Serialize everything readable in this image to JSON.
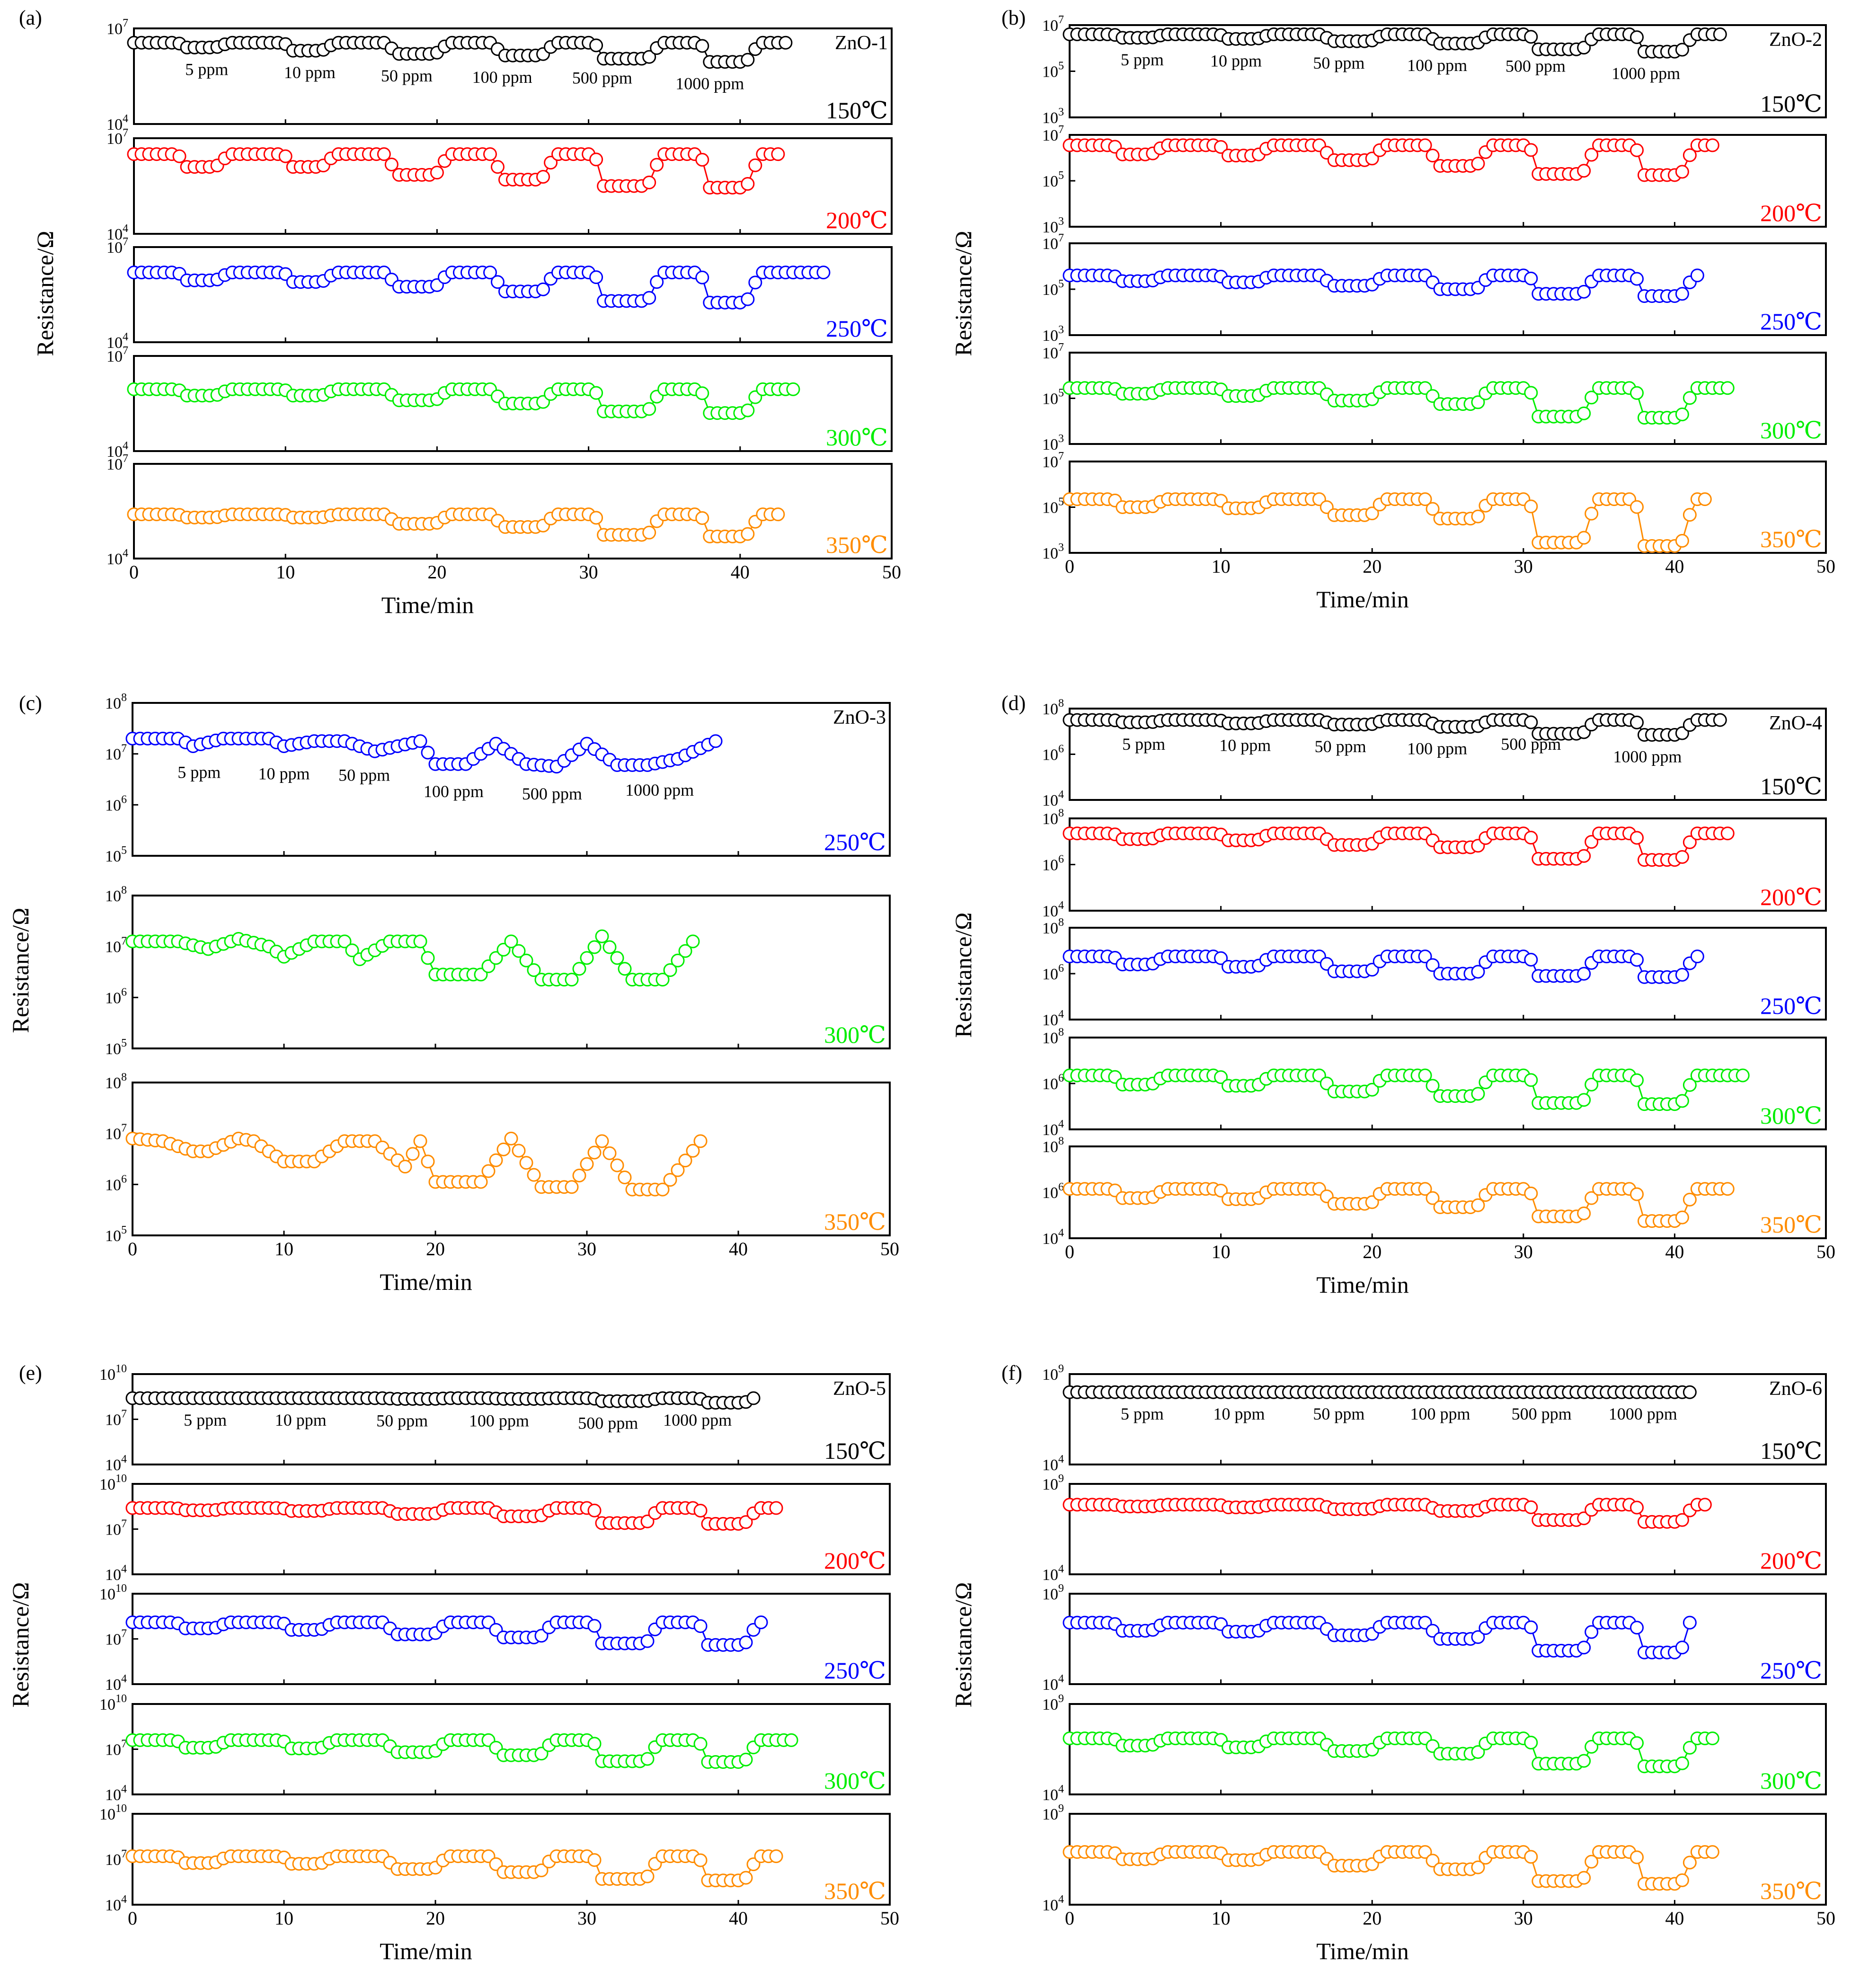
{
  "figure": {
    "axis_label_x": "Time/min",
    "axis_label_y": "Resistance/Ω",
    "x_ticks": [
      "0",
      "10",
      "20",
      "30",
      "40",
      "50"
    ],
    "xlim": [
      0,
      50
    ]
  },
  "temperatures": {
    "150": {
      "label": "150℃",
      "color": "#000000"
    },
    "200": {
      "label": "200℃",
      "color": "#ff0000"
    },
    "250": {
      "label": "250℃",
      "color": "#0000ff"
    },
    "300": {
      "label": "300℃",
      "color": "#00ee00"
    },
    "350": {
      "label": "350℃",
      "color": "#ff8c00"
    }
  },
  "chart_data": [
    {
      "panel": "(a)",
      "sample": "ZnO-1",
      "type": "line",
      "yscale": "log",
      "ylim_exp": [
        4,
        7
      ],
      "y_tick_exp": [
        4,
        7
      ],
      "xlabel": "Time/min",
      "ylabel": "Resistance/Ω",
      "concentration_labels": [
        "5 ppm",
        "10 ppm",
        "50 ppm",
        "100 ppm",
        "500 ppm",
        "1000 ppm"
      ],
      "concentration_label_times": [
        4.8,
        11.6,
        18.0,
        24.3,
        30.9,
        38.0
      ],
      "series": [
        {
          "name": "150℃",
          "temp": "150",
          "x_end": 43,
          "baseline_log": 6.55,
          "gas_log": [
            6.4,
            6.3,
            6.2,
            6.15,
            6.05,
            5.95
          ]
        },
        {
          "name": "200℃",
          "temp": "200",
          "x_end": 42.5,
          "baseline_log": 6.5,
          "gas_log": [
            6.1,
            6.1,
            5.85,
            5.7,
            5.5,
            5.45
          ]
        },
        {
          "name": "250℃",
          "temp": "250",
          "x_end": 45.5,
          "baseline_log": 6.2,
          "gas_log": [
            5.95,
            5.9,
            5.75,
            5.6,
            5.3,
            5.25
          ]
        },
        {
          "name": "300℃",
          "temp": "300",
          "x_end": 43.5,
          "baseline_log": 5.95,
          "gas_log": [
            5.75,
            5.75,
            5.6,
            5.5,
            5.25,
            5.2
          ]
        },
        {
          "name": "350℃",
          "temp": "350",
          "x_end": 42.5,
          "baseline_log": 5.4,
          "gas_log": [
            5.3,
            5.3,
            5.1,
            5.0,
            4.75,
            4.7
          ]
        }
      ]
    },
    {
      "panel": "(b)",
      "sample": "ZnO-2",
      "type": "line",
      "yscale": "log",
      "ylim_exp": [
        3,
        7
      ],
      "y_tick_exp": [
        3,
        5,
        7
      ],
      "xlabel": "Time/min",
      "ylabel": "Resistance/Ω",
      "concentration_labels": [
        "5 ppm",
        "10 ppm",
        "50 ppm",
        "100 ppm",
        "500 ppm",
        "1000 ppm"
      ],
      "concentration_label_times": [
        4.8,
        11.0,
        17.8,
        24.3,
        30.8,
        38.1
      ],
      "series": [
        {
          "name": "150℃",
          "temp": "150",
          "x_end": 43,
          "baseline_log": 6.6,
          "gas_log": [
            6.45,
            6.4,
            6.3,
            6.2,
            5.95,
            5.85
          ]
        },
        {
          "name": "200℃",
          "temp": "200",
          "x_end": 42.5,
          "baseline_log": 6.55,
          "gas_log": [
            6.15,
            6.1,
            5.9,
            5.65,
            5.3,
            5.25
          ]
        },
        {
          "name": "250℃",
          "temp": "250",
          "x_end": 41.5,
          "baseline_log": 5.6,
          "gas_log": [
            5.35,
            5.3,
            5.15,
            5.0,
            4.8,
            4.7
          ]
        },
        {
          "name": "300℃",
          "temp": "300",
          "x_end": 43.5,
          "baseline_log": 5.45,
          "gas_log": [
            5.2,
            5.1,
            4.9,
            4.75,
            4.2,
            4.15
          ]
        },
        {
          "name": "350℃",
          "temp": "350",
          "x_end": 42,
          "baseline_log": 5.35,
          "gas_log": [
            5.0,
            4.95,
            4.65,
            4.5,
            3.45,
            3.3
          ]
        }
      ]
    },
    {
      "panel": "(c)",
      "sample": "ZnO-3",
      "type": "line",
      "yscale": "log",
      "ylim_exp": [
        5,
        8
      ],
      "y_tick_exp": [
        5,
        6,
        7,
        8
      ],
      "xlabel": "Time/min",
      "ylabel": "Resistance/Ω",
      "concentration_labels": [
        "5 ppm",
        "10 ppm",
        "50 ppm",
        "100 ppm",
        "500 ppm",
        "1000 ppm"
      ],
      "concentration_label_times": [
        4.4,
        10.0,
        15.3,
        21.2,
        27.7,
        34.8
      ],
      "series": [
        {
          "name": "250℃",
          "temp": "250",
          "x_end": 38.5,
          "gas_log": [
            7.1,
            7.05,
            7.0,
            6.8,
            6.72,
            6.72
          ],
          "x_pts": [
            0,
            3,
            4,
            6,
            9,
            10,
            12,
            14,
            16,
            19,
            20,
            22,
            24,
            26,
            28,
            30,
            32,
            34,
            36,
            38.5
          ],
          "y_log": [
            7.3,
            7.3,
            7.15,
            7.3,
            7.3,
            7.15,
            7.25,
            7.25,
            7.05,
            7.25,
            6.8,
            6.8,
            7.2,
            6.8,
            6.75,
            7.2,
            6.78,
            6.78,
            6.9,
            7.25
          ]
        },
        {
          "name": "300℃",
          "temp": "300",
          "x_end": 37,
          "gas_log": [
            7.0,
            6.8,
            6.75,
            6.45,
            6.35,
            6.35
          ],
          "x_pts": [
            0,
            3,
            5,
            7,
            9,
            10,
            12,
            14,
            15,
            17,
            19,
            20,
            23,
            25,
            27,
            29,
            31,
            33,
            35,
            37
          ],
          "y_log": [
            7.1,
            7.1,
            6.95,
            7.15,
            7.0,
            6.8,
            7.1,
            7.1,
            6.75,
            7.1,
            7.1,
            6.45,
            6.45,
            7.1,
            6.35,
            6.35,
            7.2,
            6.35,
            6.35,
            7.1
          ]
        },
        {
          "name": "350℃",
          "temp": "350",
          "x_end": 37.5,
          "gas_log": [
            6.7,
            6.45,
            6.4,
            6.05,
            5.95,
            5.9
          ],
          "x_pts": [
            0,
            2,
            4,
            5,
            7,
            8,
            10,
            12,
            14,
            16,
            18,
            19,
            20,
            23,
            25,
            27,
            29,
            31,
            33,
            35,
            37.5
          ],
          "y_log": [
            6.9,
            6.85,
            6.65,
            6.65,
            6.9,
            6.85,
            6.45,
            6.45,
            6.85,
            6.85,
            6.35,
            6.85,
            6.05,
            6.05,
            6.9,
            5.95,
            5.95,
            6.85,
            5.9,
            5.9,
            6.85
          ]
        }
      ]
    },
    {
      "panel": "(d)",
      "sample": "ZnO-4",
      "type": "line",
      "yscale": "log",
      "ylim_exp": [
        4,
        8
      ],
      "y_tick_exp": [
        4,
        6,
        8
      ],
      "xlabel": "Time/min",
      "ylabel": "Resistance/Ω",
      "concentration_labels": [
        "5 ppm",
        "10 ppm",
        "50 ppm",
        "100 ppm",
        "500 ppm",
        "1000 ppm"
      ],
      "concentration_label_times": [
        4.9,
        11.6,
        17.9,
        24.3,
        30.5,
        38.2
      ],
      "series": [
        {
          "name": "150℃",
          "temp": "150",
          "x_end": 43,
          "baseline_log": 7.5,
          "gas_log": [
            7.4,
            7.35,
            7.3,
            7.2,
            6.9,
            6.85
          ]
        },
        {
          "name": "200℃",
          "temp": "200",
          "x_end": 43.5,
          "baseline_log": 7.35,
          "gas_log": [
            7.1,
            7.05,
            6.85,
            6.75,
            6.25,
            6.2
          ]
        },
        {
          "name": "250℃",
          "temp": "250",
          "x_end": 41.5,
          "baseline_log": 6.75,
          "gas_log": [
            6.4,
            6.3,
            6.1,
            6.0,
            5.9,
            5.85
          ]
        },
        {
          "name": "300℃",
          "temp": "300",
          "x_end": 44.5,
          "baseline_log": 6.35,
          "gas_log": [
            5.95,
            5.9,
            5.65,
            5.45,
            5.15,
            5.1
          ]
        },
        {
          "name": "350℃",
          "temp": "350",
          "x_end": 43.5,
          "baseline_log": 6.15,
          "gas_log": [
            5.75,
            5.7,
            5.5,
            5.35,
            4.95,
            4.75
          ]
        }
      ]
    },
    {
      "panel": "(e)",
      "sample": "ZnO-5",
      "type": "line",
      "yscale": "log",
      "ylim_exp": [
        4,
        10
      ],
      "y_tick_exp": [
        4,
        7,
        10
      ],
      "xlabel": "Time/min",
      "ylabel": "Resistance/Ω",
      "concentration_labels": [
        "5 ppm",
        "10 ppm",
        "50 ppm",
        "100 ppm",
        "500 ppm",
        "1000 ppm"
      ],
      "concentration_label_times": [
        4.8,
        11.1,
        17.8,
        24.2,
        31.4,
        37.3
      ],
      "series": [
        {
          "name": "150℃",
          "temp": "150",
          "x_end": 41,
          "baseline_log": 8.4,
          "gas_log": [
            8.4,
            8.4,
            8.35,
            8.35,
            8.2,
            8.1
          ]
        },
        {
          "name": "200℃",
          "temp": "200",
          "x_end": 42.5,
          "baseline_log": 8.4,
          "gas_log": [
            8.25,
            8.2,
            8.0,
            7.85,
            7.4,
            7.35
          ]
        },
        {
          "name": "250℃",
          "temp": "250",
          "x_end": 41.5,
          "baseline_log": 8.1,
          "gas_log": [
            7.7,
            7.6,
            7.3,
            7.1,
            6.7,
            6.6
          ]
        },
        {
          "name": "300℃",
          "temp": "300",
          "x_end": 43.5,
          "baseline_log": 7.6,
          "gas_log": [
            7.1,
            7.05,
            6.8,
            6.6,
            6.2,
            6.15
          ]
        },
        {
          "name": "350℃",
          "temp": "350",
          "x_end": 42.5,
          "baseline_log": 7.2,
          "gas_log": [
            6.75,
            6.7,
            6.35,
            6.15,
            5.7,
            5.6
          ]
        }
      ]
    },
    {
      "panel": "(f)",
      "sample": "ZnO-6",
      "type": "line",
      "yscale": "log",
      "ylim_exp": [
        4,
        9
      ],
      "y_tick_exp": [
        4,
        9
      ],
      "xlabel": "Time/min",
      "ylabel": "Resistance/Ω",
      "concentration_labels": [
        "5 ppm",
        "10 ppm",
        "50 ppm",
        "100 ppm",
        "500 ppm",
        "1000 ppm"
      ],
      "concentration_label_times": [
        4.8,
        11.2,
        17.8,
        24.5,
        31.2,
        37.9
      ],
      "series": [
        {
          "name": "150℃",
          "temp": "150",
          "x_end": 41,
          "baseline_log": 8.0,
          "gas_log": [
            8.0,
            8.0,
            8.0,
            8.0,
            8.0,
            8.0
          ]
        },
        {
          "name": "200℃",
          "temp": "200",
          "x_end": 42,
          "baseline_log": 7.85,
          "gas_log": [
            7.75,
            7.7,
            7.6,
            7.5,
            7.0,
            6.9
          ]
        },
        {
          "name": "250℃",
          "temp": "250",
          "x_end": 41,
          "baseline_log": 7.4,
          "gas_log": [
            6.95,
            6.9,
            6.7,
            6.5,
            5.85,
            5.75
          ]
        },
        {
          "name": "300℃",
          "temp": "300",
          "x_end": 42.5,
          "baseline_log": 7.1,
          "gas_log": [
            6.7,
            6.6,
            6.4,
            6.25,
            5.7,
            5.55
          ]
        },
        {
          "name": "350℃",
          "temp": "350",
          "x_end": 42.5,
          "baseline_log": 6.9,
          "gas_log": [
            6.5,
            6.45,
            6.15,
            5.95,
            5.3,
            5.15
          ]
        }
      ]
    }
  ]
}
